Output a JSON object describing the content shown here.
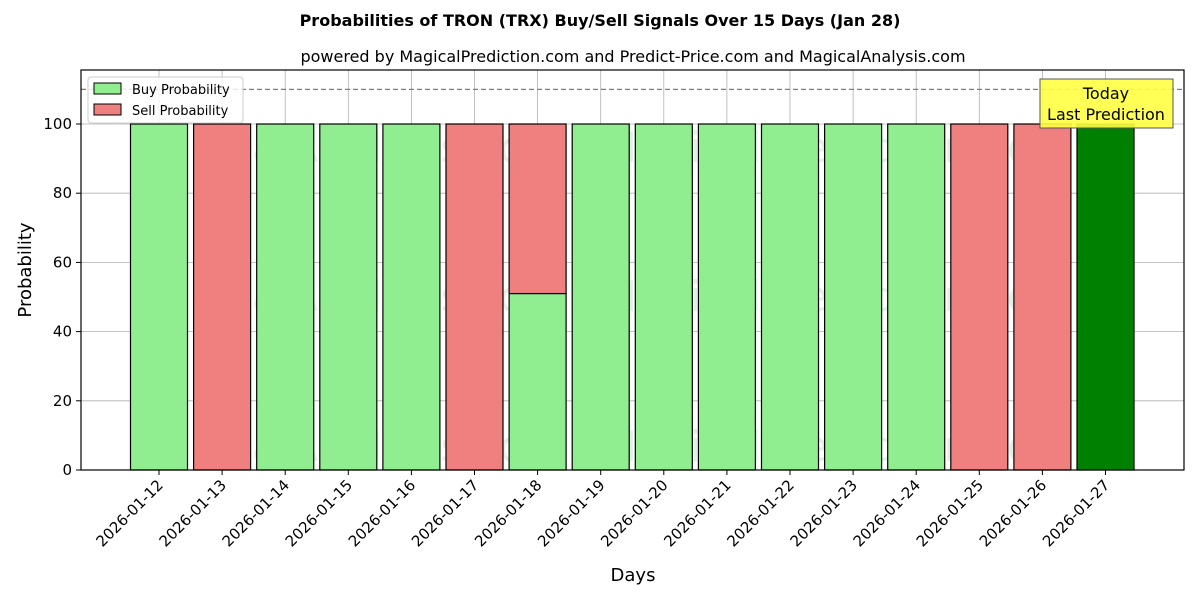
{
  "header": {
    "title": "Probabilities of TRON (TRX) Buy/Sell Signals Over 15 Days (Jan 28)",
    "subtitle": "powered by MagicalPrediction.com and Predict-Price.com and MagicalAnalysis.com"
  },
  "legend": {
    "buy_label": "Buy Probability",
    "sell_label": "Sell Probability"
  },
  "annotation": {
    "line1": "Today",
    "line2": "Last Prediction"
  },
  "watermarks": [
    "MagicalAnalysis.com",
    "MagicalPrediction.com"
  ],
  "colors": {
    "buy": "#90ee90",
    "sell": "#f08080",
    "today": "#008000",
    "annotation_bg": "#ffff44",
    "grid": "#b0b0b0",
    "threshold": "#808080"
  },
  "chart_data": {
    "type": "bar",
    "stacked": true,
    "title": "Probabilities of TRON (TRX) Buy/Sell Signals Over 15 Days (Jan 28)",
    "subtitle": "powered by MagicalPrediction.com and Predict-Price.com and MagicalAnalysis.com",
    "xlabel": "Days",
    "ylabel": "Probability",
    "ylim": [
      0,
      115
    ],
    "yticks": [
      0,
      20,
      40,
      60,
      80,
      100
    ],
    "grid": true,
    "legend_position": "upper left",
    "threshold_line": 110,
    "categories": [
      "2026-01-12",
      "2026-01-13",
      "2026-01-14",
      "2026-01-15",
      "2026-01-16",
      "2026-01-17",
      "2026-01-18",
      "2026-01-19",
      "2026-01-20",
      "2026-01-21",
      "2026-01-22",
      "2026-01-23",
      "2026-01-24",
      "2026-01-25",
      "2026-01-26",
      "2026-01-27"
    ],
    "series": [
      {
        "name": "Buy Probability",
        "values": [
          100,
          0,
          100,
          100,
          100,
          0,
          51,
          100,
          100,
          100,
          100,
          100,
          100,
          0,
          0,
          100
        ]
      },
      {
        "name": "Sell Probability",
        "values": [
          0,
          100,
          0,
          0,
          0,
          100,
          49,
          0,
          0,
          0,
          0,
          0,
          0,
          100,
          100,
          0
        ]
      }
    ],
    "highlight": {
      "category": "2026-01-27",
      "label": "Today Last Prediction",
      "color": "#008000"
    }
  }
}
